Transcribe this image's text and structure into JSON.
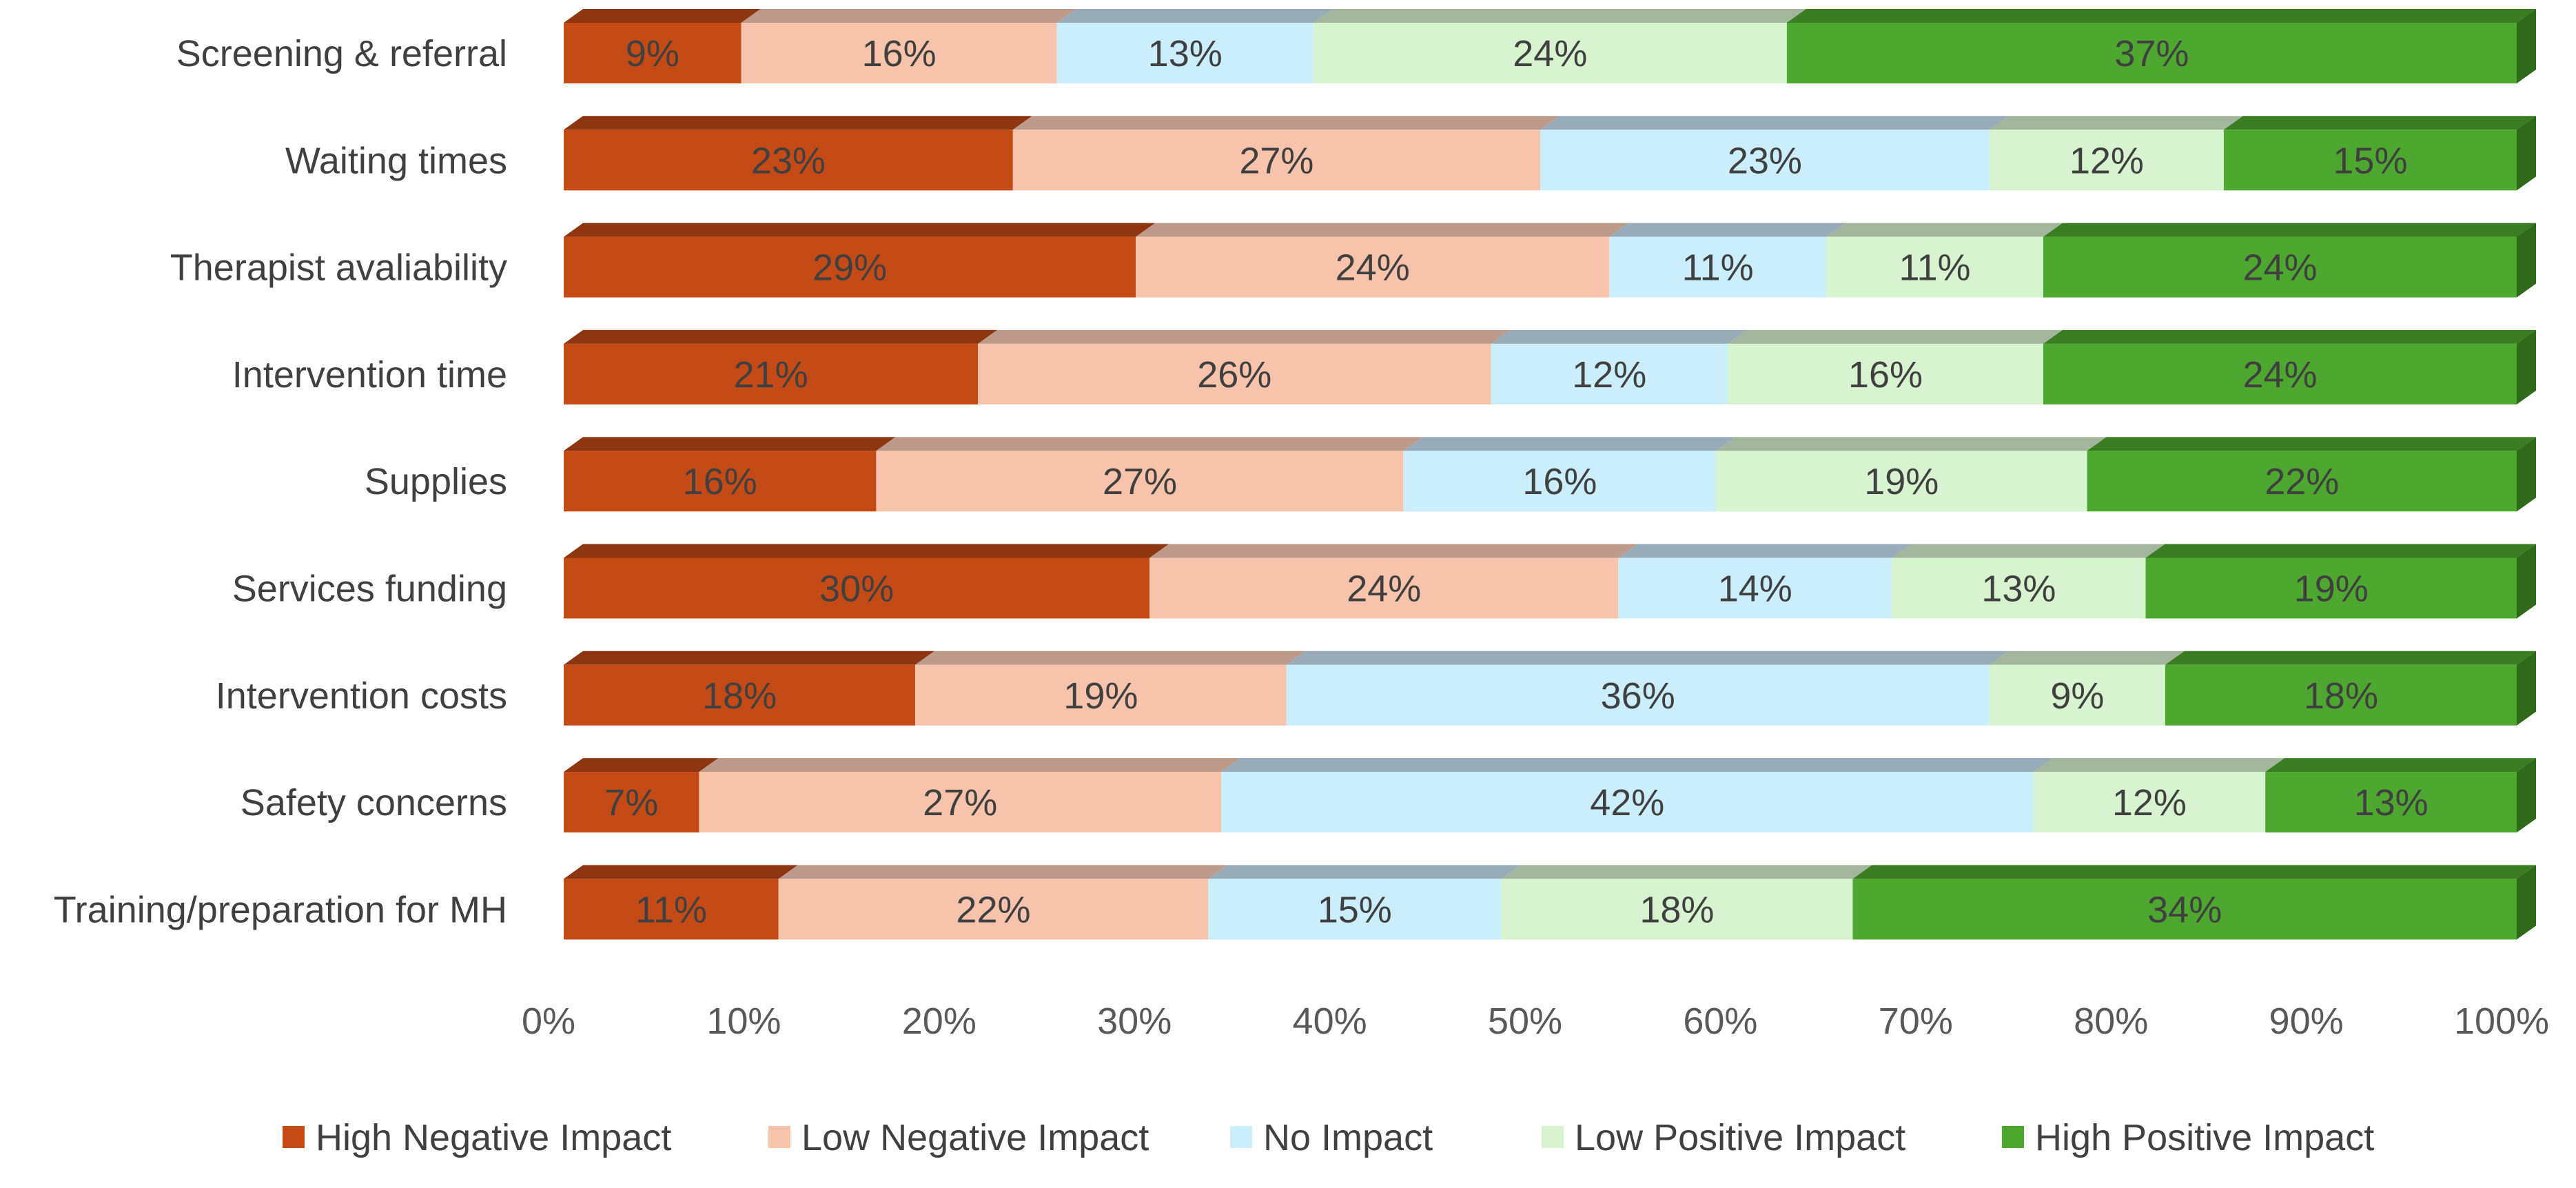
{
  "chart_data": {
    "type": "bar",
    "orientation": "horizontal",
    "stacked": "percent",
    "style": "3d",
    "title": "",
    "xlabel": "",
    "ylabel": "",
    "xlim": [
      0,
      100
    ],
    "x_ticks": [
      "0%",
      "10%",
      "20%",
      "30%",
      "40%",
      "50%",
      "60%",
      "70%",
      "80%",
      "90%",
      "100%"
    ],
    "grid": false,
    "legend_position": "bottom",
    "categories": [
      "Screening & referral",
      "Waiting times",
      "Therapist avaliability",
      "Intervention time",
      "Supplies",
      "Services funding",
      "Intervention costs",
      "Safety concerns",
      "Training/preparation for MH"
    ],
    "series": [
      {
        "name": "High Negative Impact",
        "color": "#C44A16",
        "top_color": "#8E3611",
        "side_color": "#7A2E0E",
        "values": [
          9,
          23,
          29,
          21,
          16,
          30,
          18,
          7,
          11
        ],
        "labels": [
          "9%",
          "23%",
          "29%",
          "21%",
          "16%",
          "30%",
          "18%",
          "7%",
          "11%"
        ]
      },
      {
        "name": "Low Negative Impact",
        "color": "#F7C4AB",
        "top_color": "#BC9988",
        "side_color": "#B08E7E",
        "values": [
          16,
          27,
          24,
          26,
          27,
          24,
          19,
          27,
          22
        ],
        "labels": [
          "16%",
          "27%",
          "24%",
          "26%",
          "27%",
          "24%",
          "19%",
          "27%",
          "22%"
        ]
      },
      {
        "name": "No Impact",
        "color": "#CBEEFD",
        "top_color": "#97ABB8",
        "side_color": "#8FA2AE",
        "values": [
          13,
          23,
          11,
          12,
          16,
          14,
          36,
          42,
          15
        ],
        "labels": [
          "13%",
          "23%",
          "11%",
          "12%",
          "16%",
          "14%",
          "36%",
          "42%",
          "15%"
        ]
      },
      {
        "name": "Low Positive Impact",
        "color": "#D8F3D0",
        "top_color": "#A3B59C",
        "side_color": "#96A890",
        "values": [
          24,
          12,
          11,
          16,
          19,
          13,
          9,
          12,
          18
        ],
        "labels": [
          "24%",
          "12%",
          "11%",
          "16%",
          "19%",
          "13%",
          "9%",
          "12%",
          "18%"
        ]
      },
      {
        "name": "High Positive Impact",
        "color": "#4EA72E",
        "top_color": "#3A7D22",
        "side_color": "#2F6A1B",
        "values": [
          37,
          15,
          24,
          24,
          22,
          19,
          18,
          13,
          34
        ],
        "labels": [
          "37%",
          "15%",
          "24%",
          "24%",
          "22%",
          "19%",
          "18%",
          "13%",
          "34%"
        ]
      }
    ]
  }
}
